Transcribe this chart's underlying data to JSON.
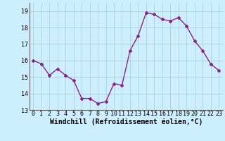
{
  "x": [
    0,
    1,
    2,
    3,
    4,
    5,
    6,
    7,
    8,
    9,
    10,
    11,
    12,
    13,
    14,
    15,
    16,
    17,
    18,
    19,
    20,
    21,
    22,
    23
  ],
  "y": [
    16.0,
    15.8,
    15.1,
    15.5,
    15.1,
    14.8,
    13.7,
    13.7,
    13.4,
    13.5,
    14.6,
    14.5,
    16.6,
    17.5,
    18.9,
    18.8,
    18.5,
    18.4,
    18.6,
    18.1,
    17.2,
    16.6,
    15.8,
    15.4
  ],
  "line_color": "#882288",
  "marker": "D",
  "marker_size": 2.0,
  "line_width": 1.0,
  "xlabel": "Windchill (Refroidissement éolien,°C)",
  "xlabel_fontsize": 7,
  "ylim": [
    13,
    19.5
  ],
  "xlim": [
    -0.5,
    23.5
  ],
  "yticks": [
    13,
    14,
    15,
    16,
    17,
    18,
    19
  ],
  "xticks": [
    0,
    1,
    2,
    3,
    4,
    5,
    6,
    7,
    8,
    9,
    10,
    11,
    12,
    13,
    14,
    15,
    16,
    17,
    18,
    19,
    20,
    21,
    22,
    23
  ],
  "xtick_labels": [
    "0",
    "1",
    "2",
    "3",
    "4",
    "5",
    "6",
    "7",
    "8",
    "9",
    "10",
    "11",
    "12",
    "13",
    "14",
    "15",
    "16",
    "17",
    "18",
    "19",
    "20",
    "21",
    "22",
    "23"
  ],
  "background_color": "#cceeff",
  "grid_color": "#aacccc",
  "tick_fontsize": 6,
  "fig_width": 3.2,
  "fig_height": 2.0,
  "dpi": 100
}
